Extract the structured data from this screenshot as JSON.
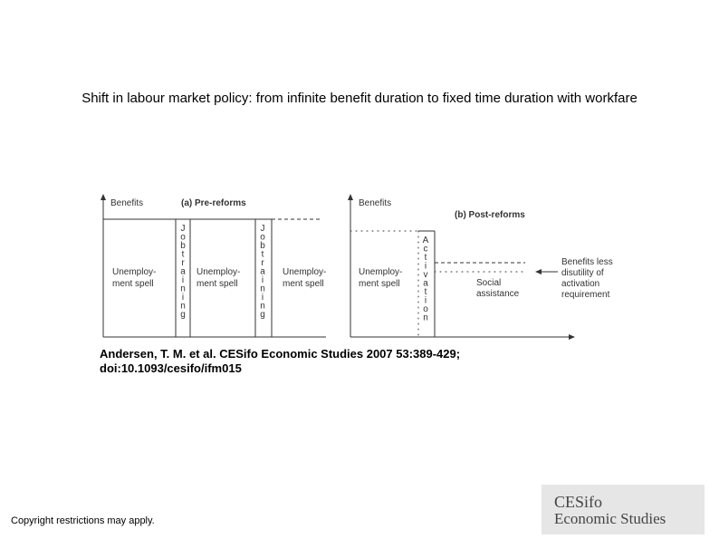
{
  "title": "Shift in labour market policy: from infinite benefit duration to fixed time duration with workfare",
  "figure": {
    "panel_a": {
      "axis_label": "Benefits",
      "title": "(a) Pre-reforms",
      "spell_1": [
        "Unemploy-",
        "ment spell"
      ],
      "spell_2": [
        "Unemploy-",
        "ment spell"
      ],
      "spell_3": [
        "Unemploy-",
        "ment spell"
      ],
      "training_1": "Jobtraining",
      "training_2": "Jobtraining"
    },
    "panel_b": {
      "axis_label": "Benefits",
      "title": "(b) Post-reforms",
      "spell": [
        "Unemploy-",
        "ment spell"
      ],
      "activation": "Activation",
      "social": [
        "Social",
        "assistance"
      ],
      "note": [
        "Benefits less",
        "disutility of",
        "activation",
        "requirement"
      ]
    }
  },
  "citation": [
    "Andersen, T. M. et al. CESifo Economic Studies 2007 53:389-429;",
    "doi:10.1093/cesifo/ifm015"
  ],
  "copyright": "Copyright restrictions may apply.",
  "logo": [
    "CESifo",
    "Economic Studies"
  ]
}
